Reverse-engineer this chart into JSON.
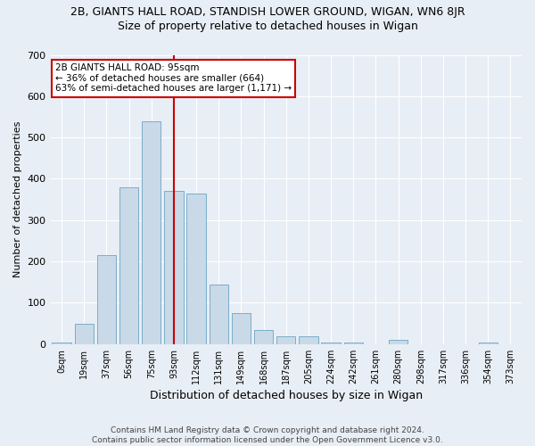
{
  "title_line1": "2B, GIANTS HALL ROAD, STANDISH LOWER GROUND, WIGAN, WN6 8JR",
  "title_line2": "Size of property relative to detached houses in Wigan",
  "xlabel": "Distribution of detached houses by size in Wigan",
  "ylabel": "Number of detached properties",
  "footer_line1": "Contains HM Land Registry data © Crown copyright and database right 2024.",
  "footer_line2": "Contains public sector information licensed under the Open Government Licence v3.0.",
  "bar_labels": [
    "0sqm",
    "19sqm",
    "37sqm",
    "56sqm",
    "75sqm",
    "93sqm",
    "112sqm",
    "131sqm",
    "149sqm",
    "168sqm",
    "187sqm",
    "205sqm",
    "224sqm",
    "242sqm",
    "261sqm",
    "280sqm",
    "298sqm",
    "317sqm",
    "336sqm",
    "354sqm",
    "373sqm"
  ],
  "bar_values": [
    5,
    50,
    215,
    380,
    540,
    370,
    365,
    145,
    75,
    35,
    20,
    20,
    5,
    5,
    0,
    10,
    0,
    0,
    0,
    5,
    0
  ],
  "bar_color": "#c9d9e8",
  "bar_edge_color": "#7aaec8",
  "vline_x": 5.0,
  "annotation_text": "2B GIANTS HALL ROAD: 95sqm\n← 36% of detached houses are smaller (664)\n63% of semi-detached houses are larger (1,171) →",
  "annotation_box_facecolor": "#ffffff",
  "annotation_box_edgecolor": "#cc0000",
  "vline_color": "#cc0000",
  "ylim": [
    0,
    700
  ],
  "yticks": [
    0,
    100,
    200,
    300,
    400,
    500,
    600,
    700
  ],
  "background_color": "#e8eef5",
  "grid_color": "#ffffff",
  "title1_fontsize": 9,
  "title2_fontsize": 9,
  "ylabel_fontsize": 8,
  "xlabel_fontsize": 9,
  "tick_fontsize": 7,
  "footer_fontsize": 6.5,
  "annot_fontsize": 7.5
}
